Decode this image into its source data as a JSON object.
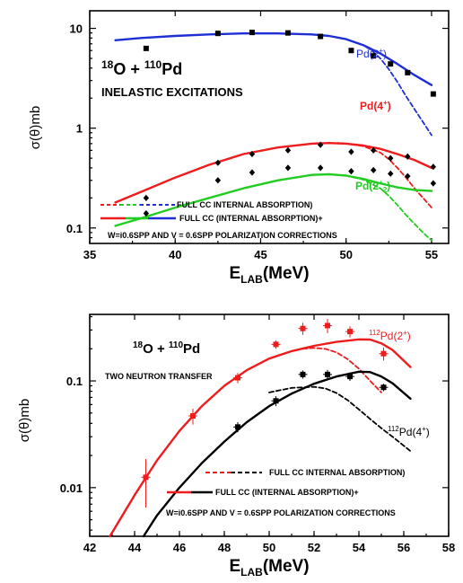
{
  "chart_data": [
    {
      "type": "scatter",
      "xlabel_main": "E",
      "xlabel_sub": "LAB",
      "xlabel_unit": "(MeV)",
      "ylabel": "σ(θ)mb",
      "xlim": [
        35,
        56
      ],
      "ylim": [
        0.07,
        15
      ],
      "yscale": "log",
      "x_ticks": [
        35,
        40,
        45,
        50,
        55
      ],
      "x_tick_labels": [
        "35",
        "40",
        "45",
        "50",
        "55"
      ],
      "y_ticks": [
        0.1,
        1,
        10
      ],
      "y_tick_labels": [
        "0.1",
        "1",
        "10"
      ],
      "title_sup1": "18",
      "title_mid": "O + ",
      "title_sup2": "110",
      "title_end": "Pd",
      "subtitle": "INELASTIC EXCITATIONS",
      "labels": {
        "pd2": "Pd(2",
        "pd2_sup": "+",
        "pd2_end": ")",
        "pd4": "Pd(4",
        "pd4_sup": "+",
        "pd4_end": ")",
        "pd22": "Pd(2",
        "pd22_sup": "+",
        "pd22_sub": "2",
        "pd22_end": ")"
      },
      "legend": [
        "FULL CC INTERNAL ABSORPTION)",
        "FULL CC (INTERNAL ABSORPTION)+"
      ],
      "note": "W=i0.6SPP AND V = 0.6SPP POLARIZATION CORRECTIONS",
      "colors": {
        "pd2": "#1f2fd6",
        "pd4": "#ee1c1c",
        "pd22": "#22cc22",
        "data": "#000000"
      },
      "series": [
        {
          "color": "#1f2fd6",
          "style": "solid",
          "x": [
            36.5,
            38,
            40,
            42,
            44,
            46,
            48,
            49,
            50,
            51,
            52,
            53,
            54,
            55
          ],
          "y": [
            7.6,
            8.0,
            8.4,
            8.7,
            8.9,
            8.9,
            8.7,
            8.4,
            7.8,
            6.8,
            5.6,
            4.4,
            3.4,
            2.7
          ]
        },
        {
          "color": "#1f2fd6",
          "style": "dashed",
          "x": [
            50,
            51,
            51.5,
            52,
            52.5,
            53,
            53.5,
            54,
            54.5,
            55
          ],
          "y": [
            7.8,
            6.8,
            6.0,
            5.0,
            3.9,
            2.9,
            2.1,
            1.55,
            1.15,
            0.85
          ]
        },
        {
          "color": "#ee1c1c",
          "style": "solid",
          "x": [
            36.5,
            38,
            40,
            42,
            44,
            46,
            48,
            49,
            50,
            51,
            52,
            53,
            54,
            55
          ],
          "y": [
            0.18,
            0.23,
            0.32,
            0.43,
            0.55,
            0.64,
            0.7,
            0.71,
            0.7,
            0.67,
            0.62,
            0.55,
            0.48,
            0.4
          ]
        },
        {
          "color": "#ee1c1c",
          "style": "dashed",
          "x": [
            49.5,
            50,
            51,
            52,
            52.5,
            53,
            53.5,
            54,
            54.5,
            55
          ],
          "y": [
            0.71,
            0.7,
            0.66,
            0.57,
            0.49,
            0.4,
            0.32,
            0.25,
            0.2,
            0.16
          ]
        },
        {
          "color": "#22cc22",
          "style": "solid",
          "x": [
            36.5,
            38,
            40,
            42,
            44,
            46,
            48,
            49,
            50,
            51,
            52,
            53,
            54,
            55
          ],
          "y": [
            0.105,
            0.125,
            0.16,
            0.2,
            0.25,
            0.3,
            0.34,
            0.345,
            0.335,
            0.31,
            0.28,
            0.255,
            0.24,
            0.235
          ]
        },
        {
          "color": "#22cc22",
          "style": "dashed",
          "x": [
            50,
            51,
            52,
            52.5,
            53,
            53.5,
            54,
            54.5,
            55
          ],
          "y": [
            0.335,
            0.305,
            0.25,
            0.21,
            0.17,
            0.135,
            0.11,
            0.09,
            0.075
          ]
        }
      ],
      "points": [
        {
          "marker": "square",
          "x": [
            38.3,
            42.5,
            44.5,
            46.6,
            48.5,
            50.3,
            51.6,
            52.6,
            53.6,
            55.1
          ],
          "y": [
            6.3,
            8.9,
            9.1,
            9.0,
            8.3,
            6.0,
            5.3,
            4.4,
            3.6,
            2.2
          ]
        },
        {
          "marker": "diamond",
          "x": [
            38.3,
            42.5,
            44.5,
            46.6,
            48.5,
            50.3,
            51.6,
            52.6,
            53.6,
            55.1
          ],
          "y": [
            0.2,
            0.45,
            0.55,
            0.6,
            0.68,
            0.58,
            0.6,
            0.5,
            0.52,
            0.41
          ]
        },
        {
          "marker": "diamond",
          "x": [
            38.3,
            42.5,
            44.5,
            46.6,
            48.5,
            50.3,
            51.6,
            52.6,
            53.6,
            55.1
          ],
          "y": [
            0.14,
            0.3,
            0.36,
            0.4,
            0.4,
            0.37,
            0.38,
            0.35,
            0.33,
            0.28
          ]
        }
      ]
    },
    {
      "type": "scatter",
      "xlabel_main": "E",
      "xlabel_sub": "LAB",
      "xlabel_unit": "(MeV)",
      "ylabel": "σ(θ)mb",
      "xlim": [
        42,
        58
      ],
      "ylim": [
        0.0035,
        0.42
      ],
      "yscale": "log",
      "x_ticks": [
        42,
        44,
        46,
        48,
        50,
        52,
        54,
        56,
        58
      ],
      "x_tick_labels": [
        "42",
        "44",
        "46",
        "48",
        "50",
        "52",
        "54",
        "56",
        "58"
      ],
      "y_ticks": [
        0.01,
        0.1
      ],
      "y_tick_labels": [
        "0.01",
        "0.1"
      ],
      "title_sup1": "18",
      "title_mid": "O + ",
      "title_sup2": "110",
      "title_end": "Pd",
      "subtitle": "TWO NEUTRON TRANSFER",
      "labels": {
        "pd2_pre": "112",
        "pd2": "Pd(2",
        "pd2_sup": "+",
        "pd2_end": ")",
        "pd4_pre": "112",
        "pd4": "Pd(4",
        "pd4_sup": "+",
        "pd4_end": ")"
      },
      "legend": [
        "FULL CC INTERNAL ABSORPTION)",
        "FULL CC (INTERNAL ABSORPTION)+"
      ],
      "note": "W=i0.6SPP AND V = 0.6SPP POLARIZATION CORRECTIONS",
      "colors": {
        "red": "#ee1c1c",
        "black": "#000000"
      },
      "series": [
        {
          "color": "#ee1c1c",
          "style": "solid",
          "x": [
            42.9,
            44,
            45,
            46,
            47,
            48,
            49,
            50,
            51,
            52,
            53,
            54,
            54.5,
            55,
            55.5,
            56.3
          ],
          "y": [
            0.0035,
            0.0085,
            0.018,
            0.034,
            0.058,
            0.09,
            0.126,
            0.162,
            0.19,
            0.213,
            0.232,
            0.245,
            0.244,
            0.225,
            0.195,
            0.135
          ]
        },
        {
          "color": "#ee1c1c",
          "style": "dashed",
          "x": [
            51.5,
            52,
            52.5,
            53,
            53.5,
            54,
            54.5,
            55
          ],
          "y": [
            0.2,
            0.204,
            0.2,
            0.185,
            0.16,
            0.13,
            0.1,
            0.078
          ]
        },
        {
          "color": "#000000",
          "style": "solid",
          "x": [
            44.4,
            45,
            46,
            47,
            48,
            49,
            50,
            51,
            52,
            53,
            54,
            54.5,
            55,
            55.5,
            56.3
          ],
          "y": [
            0.0035,
            0.0055,
            0.01,
            0.017,
            0.027,
            0.041,
            0.058,
            0.076,
            0.094,
            0.11,
            0.122,
            0.121,
            0.11,
            0.095,
            0.068
          ]
        },
        {
          "color": "#000000",
          "style": "dashed",
          "x": [
            50,
            51,
            52,
            52.5,
            53,
            53.5,
            54,
            54.5,
            55,
            55.5,
            56.3
          ],
          "y": [
            0.078,
            0.086,
            0.088,
            0.085,
            0.077,
            0.066,
            0.054,
            0.044,
            0.036,
            0.03,
            0.022
          ]
        }
      ],
      "points": [
        {
          "marker": "square",
          "color": "#ee1c1c",
          "x": [
            44.5,
            46.6,
            48.6,
            50.3,
            51.5,
            52.6,
            53.6,
            55.1
          ],
          "y": [
            0.0125,
            0.047,
            0.107,
            0.22,
            0.31,
            0.33,
            0.29,
            0.18
          ],
          "yerr": [
            0.006,
            0.008,
            0.012,
            0.02,
            0.04,
            0.05,
            0.035,
            0.025
          ]
        },
        {
          "marker": "square",
          "color": "#000000",
          "x": [
            48.6,
            50.3,
            51.5,
            52.6,
            53.6,
            55.1
          ],
          "y": [
            0.037,
            0.065,
            0.115,
            0.115,
            0.11,
            0.087
          ],
          "yerr": [
            0.004,
            0.007,
            0.01,
            0.012,
            0.01,
            0.007
          ]
        }
      ]
    }
  ]
}
